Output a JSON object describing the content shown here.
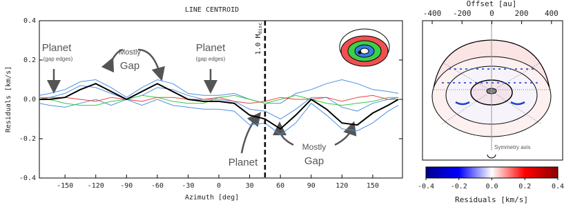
{
  "chart_data": [
    {
      "type": "line",
      "title": "LINE CENTROID",
      "xlabel": "Azimuth [deg]",
      "ylabel": "Residuals [km/s]",
      "x": [
        -175,
        -165,
        -150,
        -135,
        -120,
        -105,
        -90,
        -75,
        -60,
        -45,
        -30,
        -15,
        0,
        15,
        30,
        45,
        60,
        75,
        90,
        105,
        120,
        135,
        150,
        165,
        175
      ],
      "series": [
        {
          "color": "#4a90e2",
          "values": [
            0.02,
            0.03,
            0.05,
            0.09,
            0.1,
            0.06,
            0.01,
            0.06,
            0.1,
            0.08,
            0.03,
            0.02,
            0.02,
            0.03,
            0.0,
            -0.02,
            -0.02,
            0.03,
            0.05,
            0.08,
            0.1,
            0.08,
            0.05,
            0.04,
            0.03
          ]
        },
        {
          "color": "#4a90e2",
          "values": [
            -0.02,
            -0.03,
            -0.04,
            -0.02,
            0.0,
            -0.03,
            0,
            -0.03,
            0.0,
            -0.03,
            -0.04,
            -0.05,
            -0.05,
            -0.06,
            -0.13,
            -0.12,
            -0.18,
            -0.12,
            -0.02,
            -0.08,
            -0.15,
            -0.16,
            -0.12,
            -0.06,
            -0.03
          ]
        },
        {
          "color": "#4a90e2",
          "values": [
            0.01,
            0.01,
            0.03,
            0.07,
            0.06,
            0.03,
            0,
            0.02,
            0.06,
            0.05,
            0.02,
            0.0,
            0.0,
            -0.01,
            -0.05,
            -0.06,
            -0.1,
            -0.05,
            0.01,
            0.01,
            -0.04,
            -0.06,
            -0.02,
            0.0,
            0.01
          ]
        },
        {
          "color": "#2ecc40",
          "values": [
            0.01,
            0,
            -0.02,
            -0.03,
            -0.03,
            -0.01,
            0,
            0.02,
            0.01,
            -0.01,
            -0.02,
            -0.02,
            0.01,
            0.02,
            0.0,
            -0.02,
            0,
            0.02,
            0,
            -0.02,
            -0.03,
            -0.02,
            -0.01,
            0.01,
            0.01
          ]
        },
        {
          "color": "#e84040",
          "values": [
            0,
            0.01,
            0.01,
            0,
            -0.01,
            0.01,
            0,
            -0.01,
            0.01,
            0.01,
            0,
            0,
            0.01,
            -0.01,
            -0.02,
            -0.01,
            0.01,
            0.0,
            0,
            0.01,
            -0.01,
            0.01,
            0.02,
            0,
            0
          ]
        },
        {
          "color": "#000000",
          "values": [
            0,
            0,
            0.01,
            0.05,
            0.08,
            0.04,
            0,
            0.04,
            0.08,
            0.04,
            0,
            -0.01,
            -0.01,
            -0.02,
            -0.08,
            -0.1,
            -0.15,
            -0.08,
            0,
            -0.05,
            -0.12,
            -0.13,
            -0.07,
            -0.03,
            0
          ]
        }
      ],
      "xlim": [
        -175,
        179
      ],
      "xticks": [
        -150,
        -120,
        -90,
        -60,
        -30,
        0,
        30,
        60,
        90,
        120,
        150
      ],
      "ylim": [
        -0.4,
        0.4
      ],
      "yticks": [
        -0.4,
        -0.2,
        {
          "value": 0,
          "label": "0.0"
        },
        0.2,
        0.4
      ],
      "vline": 45,
      "vline_label": "1.0 M",
      "vline_label_sub": "disc",
      "annotations": [
        "Planet",
        "(gap edges)",
        "Mostly",
        "Gap",
        "Planet",
        "(gap edges)",
        "Planet",
        "Mostly",
        "Gap"
      ]
    },
    {
      "type": "image",
      "title": "Offset [au]",
      "xlim": [
        -465,
        475
      ],
      "xticks": [
        -400,
        -200,
        0,
        200,
        400
      ],
      "annotation": "Symmetry axis",
      "colorbar": {
        "label": "Residuals [km/s]",
        "lim": [
          -0.4,
          0.4
        ],
        "ticks": [
          -0.4,
          -0.2,
          {
            "value": 0,
            "label": "0.0"
          },
          0.2,
          0.4
        ],
        "colors": [
          "#00008b",
          "#0000ff",
          "#ffffff",
          "#ff0000",
          "#8b0000"
        ]
      }
    }
  ]
}
